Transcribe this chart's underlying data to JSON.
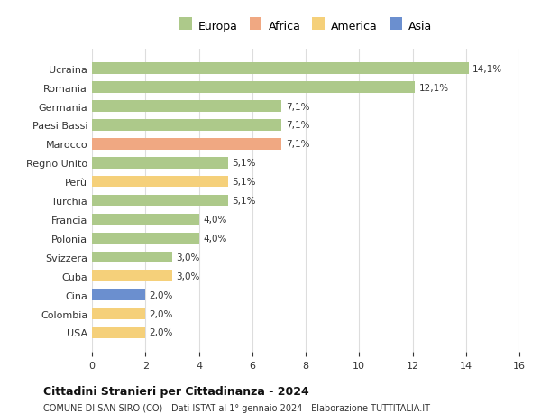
{
  "countries": [
    "Ucraina",
    "Romania",
    "Germania",
    "Paesi Bassi",
    "Marocco",
    "Regno Unito",
    "Perù",
    "Turchia",
    "Francia",
    "Polonia",
    "Svizzera",
    "Cuba",
    "Cina",
    "Colombia",
    "USA"
  ],
  "values": [
    14.1,
    12.1,
    7.1,
    7.1,
    7.1,
    5.1,
    5.1,
    5.1,
    4.0,
    4.0,
    3.0,
    3.0,
    2.0,
    2.0,
    2.0
  ],
  "continents": [
    "Europa",
    "Europa",
    "Europa",
    "Europa",
    "Africa",
    "Europa",
    "America",
    "Europa",
    "Europa",
    "Europa",
    "Europa",
    "America",
    "Asia",
    "America",
    "America"
  ],
  "colors": {
    "Europa": "#adc98a",
    "Africa": "#f0a882",
    "America": "#f5d07a",
    "Asia": "#6b8fcf"
  },
  "legend_order": [
    "Europa",
    "Africa",
    "America",
    "Asia"
  ],
  "xlim": [
    0,
    16
  ],
  "xticks": [
    0,
    2,
    4,
    6,
    8,
    10,
    12,
    14,
    16
  ],
  "title": "Cittadini Stranieri per Cittadinanza - 2024",
  "subtitle": "COMUNE DI SAN SIRO (CO) - Dati ISTAT al 1° gennaio 2024 - Elaborazione TUTTITALIA.IT",
  "bar_height": 0.6,
  "background_color": "#ffffff",
  "grid_color": "#dddddd"
}
